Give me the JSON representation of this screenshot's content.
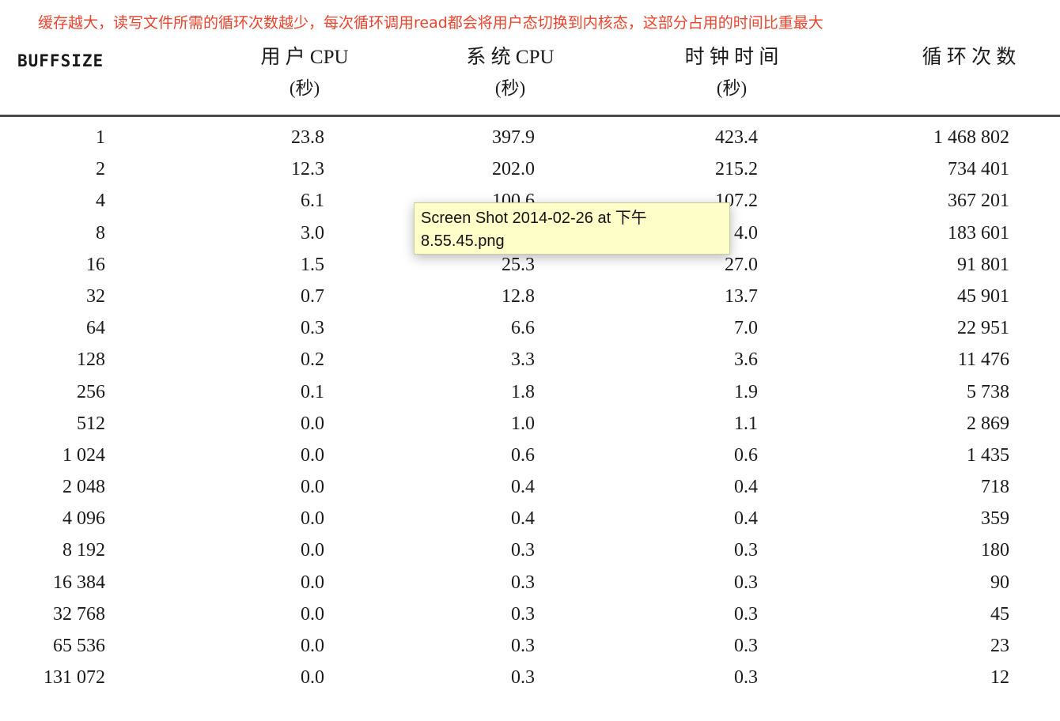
{
  "annotation": "缓存越大，读写文件所需的循环次数越少，每次循环调用read都会将用户态切换到内核态，这部分占用的时间比重最大",
  "table": {
    "headers": [
      {
        "title": "BUFFSIZE",
        "sub": ""
      },
      {
        "title": "用 户 CPU",
        "sub": "(秒)"
      },
      {
        "title": "系 统 CPU",
        "sub": "(秒)"
      },
      {
        "title": "时 钟 时 间",
        "sub": "(秒)"
      },
      {
        "title": "循 环 次 数",
        "sub": ""
      }
    ],
    "rows": [
      [
        "1",
        "23.8",
        "397.9",
        "423.4",
        "1 468 802"
      ],
      [
        "2",
        "12.3",
        "202.0",
        "215.2",
        "734 401"
      ],
      [
        "4",
        "6.1",
        "100.6",
        "107.2",
        "367 201"
      ],
      [
        "8",
        "3.0",
        "",
        "4.0",
        "183 601"
      ],
      [
        "16",
        "1.5",
        "25.3",
        "27.0",
        "91 801"
      ],
      [
        "32",
        "0.7",
        "12.8",
        "13.7",
        "45 901"
      ],
      [
        "64",
        "0.3",
        "6.6",
        "7.0",
        "22 951"
      ],
      [
        "128",
        "0.2",
        "3.3",
        "3.6",
        "11 476"
      ],
      [
        "256",
        "0.1",
        "1.8",
        "1.9",
        "5 738"
      ],
      [
        "512",
        "0.0",
        "1.0",
        "1.1",
        "2 869"
      ],
      [
        "1 024",
        "0.0",
        "0.6",
        "0.6",
        "1 435"
      ],
      [
        "2 048",
        "0.0",
        "0.4",
        "0.4",
        "718"
      ],
      [
        "4 096",
        "0.0",
        "0.4",
        "0.4",
        "359"
      ],
      [
        "8 192",
        "0.0",
        "0.3",
        "0.3",
        "180"
      ],
      [
        "16 384",
        "0.0",
        "0.3",
        "0.3",
        "90"
      ],
      [
        "32 768",
        "0.0",
        "0.3",
        "0.3",
        "45"
      ],
      [
        "65 536",
        "0.0",
        "0.3",
        "0.3",
        "23"
      ],
      [
        "131 072",
        "0.0",
        "0.3",
        "0.3",
        "12"
      ]
    ]
  },
  "tooltip": {
    "line1": "Screen Shot 2014-02-26 at 下午",
    "line2": "8.55.45.png"
  }
}
